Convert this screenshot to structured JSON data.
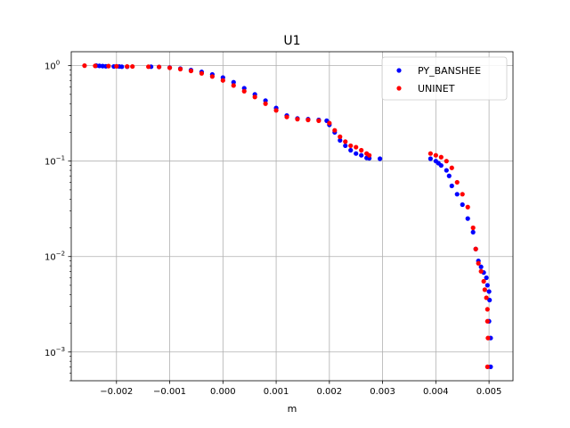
{
  "chart_data": {
    "type": "scatter",
    "title": "U1",
    "xlabel": "m",
    "ylabel": "",
    "xlim": [
      -0.00285,
      0.00545
    ],
    "ylim": [
      0.0005,
      1.4
    ],
    "yscale": "log",
    "grid": true,
    "legend_position": "top-right",
    "x_ticks": [
      -0.002,
      -0.001,
      0.0,
      0.001,
      0.002,
      0.003,
      0.004,
      0.005
    ],
    "x_tick_labels": [
      "−0.002",
      "−0.001",
      "0.000",
      "0.001",
      "0.002",
      "0.003",
      "0.004",
      "0.005"
    ],
    "y_ticks": [
      {
        "value": 1,
        "base": "10",
        "exp": "0"
      },
      {
        "value": 0.1,
        "base": "10",
        "exp": "−1"
      },
      {
        "value": 0.01,
        "base": "10",
        "exp": "−2"
      },
      {
        "value": 0.001,
        "base": "10",
        "exp": "−3"
      }
    ],
    "series": [
      {
        "name": "PY_BANSHEE",
        "color": "#0000ff",
        "marker": "circle",
        "points": [
          [
            -0.00238,
            1.0
          ],
          [
            -0.00232,
            0.995
          ],
          [
            -0.00226,
            0.99
          ],
          [
            -0.0022,
            0.985
          ],
          [
            -0.00205,
            0.98
          ],
          [
            -0.00195,
            0.98
          ],
          [
            -0.0019,
            0.975
          ],
          [
            -0.0018,
            0.975
          ],
          [
            -0.00135,
            0.975
          ],
          [
            -0.0012,
            0.97
          ],
          [
            -0.001,
            0.955
          ],
          [
            -0.0008,
            0.93
          ],
          [
            -0.0006,
            0.9
          ],
          [
            -0.0004,
            0.86
          ],
          [
            -0.0002,
            0.81
          ],
          [
            0.0,
            0.75
          ],
          [
            0.0002,
            0.67
          ],
          [
            0.0004,
            0.58
          ],
          [
            0.0006,
            0.5
          ],
          [
            0.0008,
            0.43
          ],
          [
            0.001,
            0.36
          ],
          [
            0.0012,
            0.3
          ],
          [
            0.0014,
            0.28
          ],
          [
            0.0016,
            0.275
          ],
          [
            0.0018,
            0.27
          ],
          [
            0.00195,
            0.265
          ],
          [
            0.002,
            0.24
          ],
          [
            0.0021,
            0.2
          ],
          [
            0.0022,
            0.165
          ],
          [
            0.0023,
            0.145
          ],
          [
            0.0024,
            0.13
          ],
          [
            0.0025,
            0.12
          ],
          [
            0.0026,
            0.115
          ],
          [
            0.0027,
            0.108
          ],
          [
            0.00275,
            0.107
          ],
          [
            0.00295,
            0.106
          ],
          [
            0.0039,
            0.106
          ],
          [
            0.004,
            0.1
          ],
          [
            0.00405,
            0.095
          ],
          [
            0.0041,
            0.09
          ],
          [
            0.0042,
            0.08
          ],
          [
            0.00425,
            0.07
          ],
          [
            0.0043,
            0.055
          ],
          [
            0.0044,
            0.045
          ],
          [
            0.0045,
            0.035
          ],
          [
            0.0046,
            0.025
          ],
          [
            0.0047,
            0.018
          ],
          [
            0.00475,
            0.012
          ],
          [
            0.0048,
            0.009
          ],
          [
            0.00485,
            0.0078
          ],
          [
            0.0049,
            0.0068
          ],
          [
            0.00495,
            0.006
          ],
          [
            0.00497,
            0.005
          ],
          [
            0.005,
            0.0043
          ],
          [
            0.00501,
            0.0035
          ],
          [
            0.005,
            0.0021
          ],
          [
            0.00503,
            0.0014
          ],
          [
            0.00503,
            0.0007
          ]
        ]
      },
      {
        "name": "UNINET",
        "color": "#ff0000",
        "marker": "circle",
        "points": [
          [
            -0.0026,
            1.0
          ],
          [
            -0.0024,
            0.995
          ],
          [
            -0.00215,
            0.99
          ],
          [
            -0.002,
            0.985
          ],
          [
            -0.0018,
            0.98
          ],
          [
            -0.0017,
            0.98
          ],
          [
            -0.0014,
            0.975
          ],
          [
            -0.0012,
            0.97
          ],
          [
            -0.001,
            0.95
          ],
          [
            -0.0008,
            0.92
          ],
          [
            -0.0006,
            0.88
          ],
          [
            -0.0004,
            0.83
          ],
          [
            -0.0002,
            0.77
          ],
          [
            0.0,
            0.7
          ],
          [
            0.0002,
            0.62
          ],
          [
            0.0004,
            0.54
          ],
          [
            0.0006,
            0.47
          ],
          [
            0.0008,
            0.4
          ],
          [
            0.001,
            0.34
          ],
          [
            0.0012,
            0.29
          ],
          [
            0.0014,
            0.275
          ],
          [
            0.0016,
            0.27
          ],
          [
            0.0018,
            0.265
          ],
          [
            0.002,
            0.25
          ],
          [
            0.0021,
            0.21
          ],
          [
            0.0022,
            0.18
          ],
          [
            0.0023,
            0.16
          ],
          [
            0.0024,
            0.145
          ],
          [
            0.0025,
            0.14
          ],
          [
            0.0026,
            0.13
          ],
          [
            0.0027,
            0.12
          ],
          [
            0.00275,
            0.115
          ],
          [
            0.0039,
            0.12
          ],
          [
            0.004,
            0.115
          ],
          [
            0.0041,
            0.11
          ],
          [
            0.0042,
            0.1
          ],
          [
            0.0043,
            0.085
          ],
          [
            0.0044,
            0.06
          ],
          [
            0.0045,
            0.045
          ],
          [
            0.0046,
            0.033
          ],
          [
            0.0047,
            0.02
          ],
          [
            0.00475,
            0.012
          ],
          [
            0.0048,
            0.0085
          ],
          [
            0.00485,
            0.007
          ],
          [
            0.0049,
            0.0055
          ],
          [
            0.00492,
            0.0045
          ],
          [
            0.00495,
            0.0037
          ],
          [
            0.00497,
            0.0028
          ],
          [
            0.00497,
            0.0021
          ],
          [
            0.00498,
            0.0014
          ],
          [
            0.00497,
            0.0007
          ]
        ]
      }
    ]
  }
}
